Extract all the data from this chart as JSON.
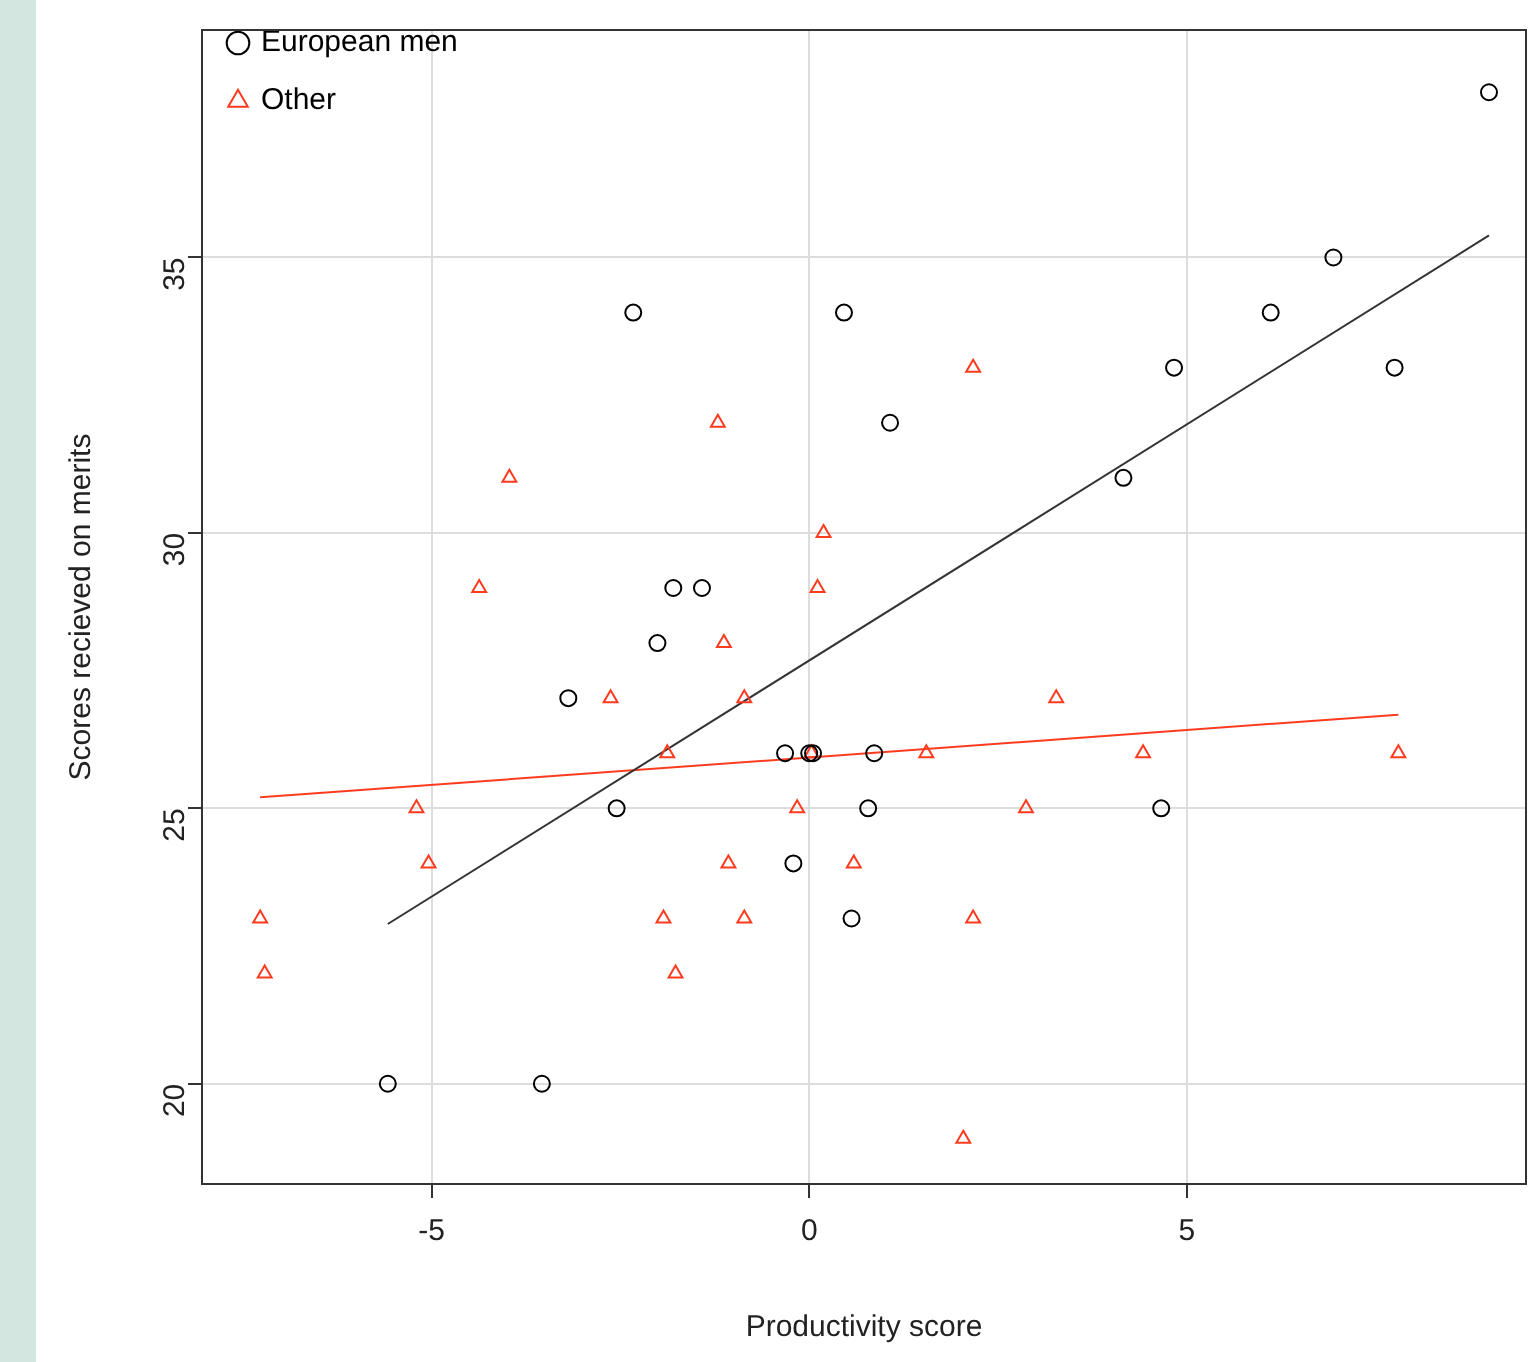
{
  "chart_data": {
    "type": "scatter",
    "xlabel": "Productivity score",
    "ylabel": "Scores recieved on merits",
    "xlim": [
      -8.04,
      9.49
    ],
    "ylim": [
      18.18,
      39.13
    ],
    "xticks": [
      -5,
      0,
      5
    ],
    "yticks": [
      20,
      25,
      30,
      35
    ],
    "grid": true,
    "legend": "top left",
    "series": [
      {
        "name": "European men",
        "color": "#000000",
        "marker": "circle",
        "x": [
          -5.58,
          -3.54,
          -2.33,
          0.46,
          1.07,
          -3.19,
          -2.01,
          -1.8,
          -1.42,
          -2.55,
          -0.32,
          0,
          0.05,
          0.86,
          -0.21,
          0.78,
          0.56,
          4.66,
          4.16,
          4.83,
          6.11,
          6.94,
          7.75,
          9.0
        ],
        "values": [
          20,
          20,
          34,
          34,
          32,
          27,
          28,
          29,
          29,
          25,
          26,
          26,
          26,
          26,
          24,
          25,
          23,
          25,
          31,
          33,
          34,
          35,
          33,
          38
        ]
      },
      {
        "name": "Other",
        "color": "#ff3b1f",
        "marker": "triangle",
        "x": [
          -7.27,
          -7.21,
          -5.2,
          -5.04,
          -4.37,
          -3.97,
          -2.63,
          -1.88,
          -1.93,
          -1.77,
          -1.21,
          -1.13,
          -0.86,
          -1.07,
          -0.86,
          -0.16,
          0.03,
          0.11,
          0.19,
          0.59,
          1.55,
          2.04,
          2.17,
          2.17,
          2.87,
          3.27,
          4.42,
          7.8
        ],
        "values": [
          23,
          22,
          25,
          24,
          29,
          31,
          27,
          26,
          23,
          22,
          32,
          28,
          27,
          24,
          23,
          25,
          26,
          29,
          30,
          24,
          26,
          19,
          33,
          23,
          25,
          27,
          26,
          26
        ]
      },
      {
        "type": "line",
        "color": "#333333",
        "x": [
          -5.58,
          9.0
        ],
        "values": [
          22.9,
          35.4
        ]
      },
      {
        "type": "line",
        "color": "#ff3b1f",
        "x": [
          -7.27,
          7.8
        ],
        "values": [
          25.2,
          26.7
        ]
      }
    ]
  }
}
